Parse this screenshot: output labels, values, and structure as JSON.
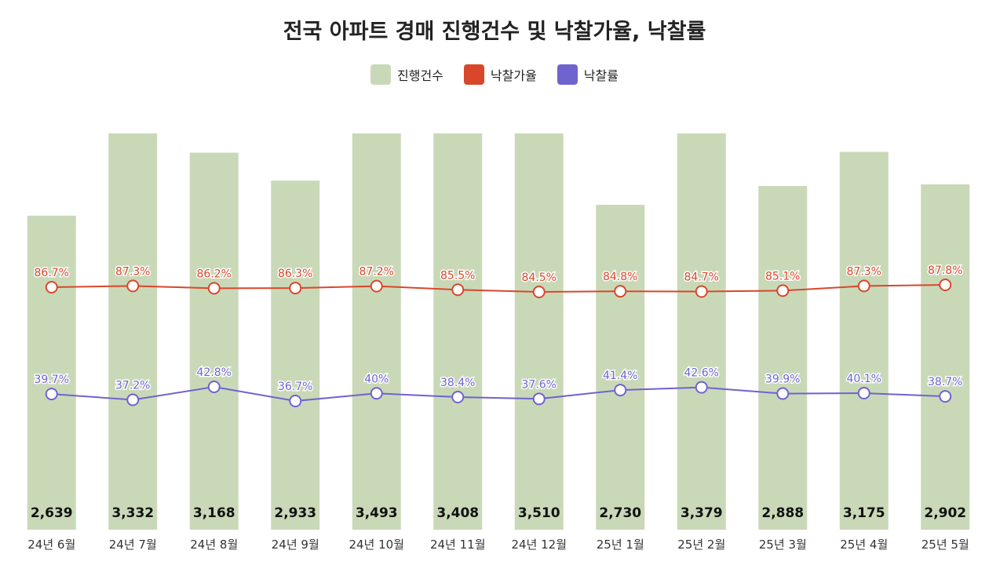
{
  "chart_data": {
    "type": "bar",
    "title": "전국 아파트 경매 진행건수 및 낙찰가율, 낙찰률",
    "categories": [
      "24년 6월",
      "24년 7월",
      "24년 8월",
      "24년 9월",
      "24년 10월",
      "24년 11월",
      "24년 12월",
      "25년 1월",
      "25년 2월",
      "25년 3월",
      "25년 4월",
      "25년 5월"
    ],
    "series": [
      {
        "name": "진행건수",
        "type": "bar",
        "color": "#c9d9b8",
        "values": [
          2639,
          3332,
          3168,
          2933,
          3493,
          3408,
          3510,
          2730,
          3379,
          2888,
          3175,
          2902
        ],
        "labels": [
          "2,639",
          "3,332",
          "3,168",
          "2,933",
          "3,493",
          "3,408",
          "3,510",
          "2,730",
          "3,379",
          "2,888",
          "3,175",
          "2,902"
        ]
      },
      {
        "name": "낙찰가율",
        "type": "line",
        "color": "#d9472b",
        "values": [
          86.7,
          87.3,
          86.2,
          86.3,
          87.2,
          85.5,
          84.5,
          84.8,
          84.7,
          85.1,
          87.3,
          87.8
        ],
        "labels": [
          "86.7%",
          "87.3%",
          "86.2%",
          "86.3%",
          "87.2%",
          "85.5%",
          "84.5%",
          "84.8%",
          "84.7%",
          "85.1%",
          "87.3%",
          "87.8%"
        ]
      },
      {
        "name": "낙찰률",
        "type": "line",
        "color": "#6f63d0",
        "values": [
          39.7,
          37.2,
          42.8,
          36.7,
          40,
          38.4,
          37.6,
          41.4,
          42.6,
          39.9,
          40.1,
          38.7
        ],
        "labels": [
          "39.7%",
          "37.2%",
          "42.8%",
          "36.7%",
          "40%",
          "38.4%",
          "37.6%",
          "41.4%",
          "42.6%",
          "39.9%",
          "40.1%",
          "38.7%"
        ]
      }
    ],
    "legend_position": "top-center",
    "grid": false
  }
}
